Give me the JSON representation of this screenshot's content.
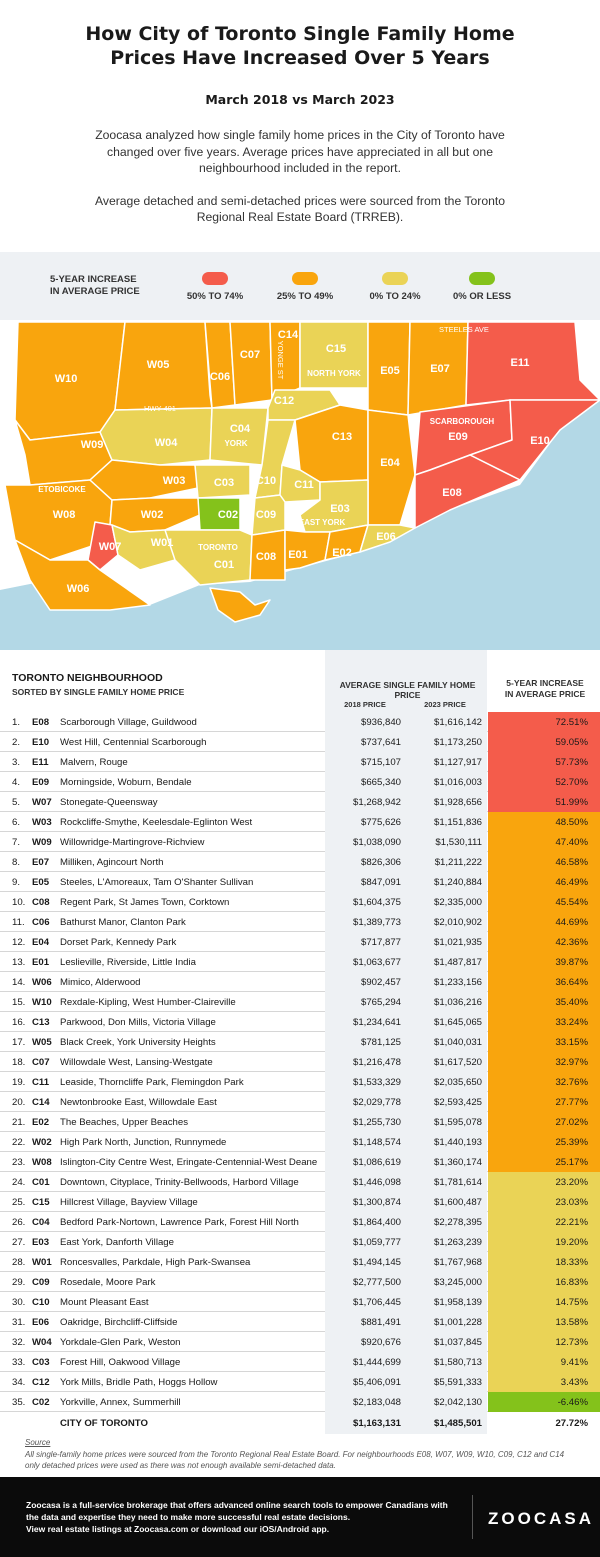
{
  "header": {
    "title": "How City of Toronto Single Family Home Prices Have Increased Over 5 Years",
    "subtitle": "March 2018 vs March 2023",
    "intro1": "Zoocasa analyzed how single family home prices in the City of Toronto have changed over five years. Average prices have appreciated in all but one neighbourhood included in the report.",
    "intro2": "Average detached and semi-detached prices were sourced from the Toronto Regional Real Estate Board (TRREB)."
  },
  "legend": {
    "title_line1": "5-YEAR INCREASE",
    "title_line2": "IN AVERAGE PRICE",
    "items": [
      {
        "label": "50% TO 74%",
        "color": "#f45c4b"
      },
      {
        "label": "25% TO 49%",
        "color": "#f9a50d"
      },
      {
        "label": "0% TO 24%",
        "color": "#ead356"
      },
      {
        "label": "0% OR LESS",
        "color": "#84c21b"
      }
    ]
  },
  "map": {
    "labels": {
      "steeles": "STEELES AVE",
      "yonge": "YONGE ST",
      "hwy": "HWY 401",
      "north_york": "NORTH YORK",
      "york": "YORK",
      "etobicoke": "ETOBICOKE",
      "scarborough": "SCARBOROUGH",
      "toronto": "TORONTO",
      "east_york": "EAST YORK"
    },
    "codes": [
      "W10",
      "W05",
      "C06",
      "C07",
      "C14",
      "C15",
      "E05",
      "E07",
      "E11",
      "W09",
      "W04",
      "C04",
      "C12",
      "C13",
      "E09",
      "E10",
      "E04",
      "W08",
      "W03",
      "C03",
      "C10",
      "C11",
      "E03",
      "E08",
      "W02",
      "C02",
      "C09",
      "W07",
      "W01",
      "C01",
      "C08",
      "E01",
      "E02",
      "E06",
      "W06"
    ]
  },
  "table": {
    "header_left": "TORONTO NEIGHBOURHOOD",
    "header_left_sub": "SORTED BY SINGLE FAMILY HOME PRICE",
    "header_mid": "AVERAGE SINGLE FAMILY HOME PRICE",
    "header_2018": "2018 PRICE",
    "header_2023": "2023 PRICE",
    "header_right_line1": "5-YEAR INCREASE",
    "header_right_line2": "IN AVERAGE PRICE",
    "rows": [
      {
        "rank": "1.",
        "code": "E08",
        "name": "Scarborough Village, Guildwood",
        "p2018": "$936,840",
        "p2023": "$1,616,142",
        "inc": "72.51%"
      },
      {
        "rank": "2.",
        "code": "E10",
        "name": "West Hill, Centennial Scarborough",
        "p2018": "$737,641",
        "p2023": "$1,173,250",
        "inc": "59.05%"
      },
      {
        "rank": "3.",
        "code": "E11",
        "name": "Malvern, Rouge",
        "p2018": "$715,107",
        "p2023": "$1,127,917",
        "inc": "57.73%"
      },
      {
        "rank": "4.",
        "code": "E09",
        "name": "Morningside, Woburn, Bendale",
        "p2018": "$665,340",
        "p2023": "$1,016,003",
        "inc": "52.70%"
      },
      {
        "rank": "5.",
        "code": "W07",
        "name": "Stonegate-Queensway",
        "p2018": "$1,268,942",
        "p2023": "$1,928,656",
        "inc": "51.99%"
      },
      {
        "rank": "6.",
        "code": "W03",
        "name": "Rockcliffe-Smythe, Keelesdale-Eglinton West",
        "p2018": "$775,626",
        "p2023": "$1,151,836",
        "inc": "48.50%"
      },
      {
        "rank": "7.",
        "code": "W09",
        "name": "Willowridge-Martingrove-Richview",
        "p2018": "$1,038,090",
        "p2023": "$1,530,111",
        "inc": "47.40%"
      },
      {
        "rank": "8.",
        "code": "E07",
        "name": "Milliken, Agincourt North",
        "p2018": "$826,306",
        "p2023": "$1,211,222",
        "inc": "46.58%"
      },
      {
        "rank": "9.",
        "code": "E05",
        "name": "Steeles, L'Amoreaux, Tam O'Shanter Sullivan",
        "p2018": "$847,091",
        "p2023": "$1,240,884",
        "inc": "46.49%"
      },
      {
        "rank": "10.",
        "code": "C08",
        "name": "Regent Park, St James Town, Corktown",
        "p2018": "$1,604,375",
        "p2023": "$2,335,000",
        "inc": "45.54%"
      },
      {
        "rank": "11.",
        "code": "C06",
        "name": "Bathurst Manor, Clanton Park",
        "p2018": "$1,389,773",
        "p2023": "$2,010,902",
        "inc": "44.69%"
      },
      {
        "rank": "12.",
        "code": "E04",
        "name": "Dorset Park, Kennedy Park",
        "p2018": "$717,877",
        "p2023": "$1,021,935",
        "inc": "42.36%"
      },
      {
        "rank": "13.",
        "code": "E01",
        "name": "Leslieville, Riverside, Little India",
        "p2018": "$1,063,677",
        "p2023": "$1,487,817",
        "inc": "39.87%"
      },
      {
        "rank": "14.",
        "code": "W06",
        "name": "Mimico, Alderwood",
        "p2018": "$902,457",
        "p2023": "$1,233,156",
        "inc": "36.64%"
      },
      {
        "rank": "15.",
        "code": "W10",
        "name": "Rexdale-Kipling, West Humber-Claireville",
        "p2018": "$765,294",
        "p2023": "$1,036,216",
        "inc": "35.40%"
      },
      {
        "rank": "16.",
        "code": "C13",
        "name": "Parkwood, Don Mills, Victoria Village",
        "p2018": "$1,234,641",
        "p2023": "$1,645,065",
        "inc": "33.24%"
      },
      {
        "rank": "17.",
        "code": "W05",
        "name": "Black Creek, York University Heights",
        "p2018": "$781,125",
        "p2023": "$1,040,031",
        "inc": "33.15%"
      },
      {
        "rank": "18.",
        "code": "C07",
        "name": "Willowdale West, Lansing-Westgate",
        "p2018": "$1,216,478",
        "p2023": "$1,617,520",
        "inc": "32.97%"
      },
      {
        "rank": "19.",
        "code": "C11",
        "name": "Leaside, Thorncliffe Park, Flemingdon Park",
        "p2018": "$1,533,329",
        "p2023": "$2,035,650",
        "inc": "32.76%"
      },
      {
        "rank": "20.",
        "code": "C14",
        "name": "Newtonbrooke East, Willowdale East",
        "p2018": "$2,029,778",
        "p2023": "$2,593,425",
        "inc": "27.77%"
      },
      {
        "rank": "21.",
        "code": "E02",
        "name": "The Beaches, Upper Beaches",
        "p2018": "$1,255,730",
        "p2023": "$1,595,078",
        "inc": "27.02%"
      },
      {
        "rank": "22.",
        "code": "W02",
        "name": "High Park North, Junction, Runnymede",
        "p2018": "$1,148,574",
        "p2023": "$1,440,193",
        "inc": "25.39%"
      },
      {
        "rank": "23.",
        "code": "W08",
        "name": "Islington-City Centre West, Eringate-Centennial-West Deane",
        "p2018": "$1,086,619",
        "p2023": "$1,360,174",
        "inc": "25.17%"
      },
      {
        "rank": "24.",
        "code": "C01",
        "name": "Downtown, Cityplace, Trinity-Bellwoods, Harbord Village",
        "p2018": "$1,446,098",
        "p2023": "$1,781,614",
        "inc": "23.20%"
      },
      {
        "rank": "25.",
        "code": "C15",
        "name": "Hillcrest Village, Bayview Village",
        "p2018": "$1,300,874",
        "p2023": "$1,600,487",
        "inc": "23.03%"
      },
      {
        "rank": "26.",
        "code": "C04",
        "name": "Bedford Park-Nortown, Lawrence Park, Forest Hill North",
        "p2018": "$1,864,400",
        "p2023": "$2,278,395",
        "inc": "22.21%"
      },
      {
        "rank": "27.",
        "code": "E03",
        "name": "East York, Danforth Village",
        "p2018": "$1,059,777",
        "p2023": "$1,263,239",
        "inc": "19.20%"
      },
      {
        "rank": "28.",
        "code": "W01",
        "name": "Roncesvalles, Parkdale, High Park-Swansea",
        "p2018": "$1,494,145",
        "p2023": "$1,767,968",
        "inc": "18.33%"
      },
      {
        "rank": "29.",
        "code": "C09",
        "name": "Rosedale, Moore Park",
        "p2018": "$2,777,500",
        "p2023": "$3,245,000",
        "inc": "16.83%"
      },
      {
        "rank": "30.",
        "code": "C10",
        "name": "Mount Pleasant East",
        "p2018": "$1,706,445",
        "p2023": "$1,958,139",
        "inc": "14.75%"
      },
      {
        "rank": "31.",
        "code": "E06",
        "name": "Oakridge, Birchcliff-Cliffside",
        "p2018": "$881,491",
        "p2023": "$1,001,228",
        "inc": "13.58%"
      },
      {
        "rank": "32.",
        "code": "W04",
        "name": "Yorkdale-Glen Park, Weston",
        "p2018": "$920,676",
        "p2023": "$1,037,845",
        "inc": "12.73%"
      },
      {
        "rank": "33.",
        "code": "C03",
        "name": "Forest Hill, Oakwood Village",
        "p2018": "$1,444,699",
        "p2023": "$1,580,713",
        "inc": "9.41%"
      },
      {
        "rank": "34.",
        "code": "C12",
        "name": "York Mills, Bridle Path, Hoggs Hollow",
        "p2018": "$5,406,091",
        "p2023": "$5,591,333",
        "inc": "3.43%"
      },
      {
        "rank": "35.",
        "code": "C02",
        "name": "Yorkville, Annex, Summerhill",
        "p2018": "$2,183,048",
        "p2023": "$2,042,130",
        "inc": "-6.46%"
      }
    ],
    "total": {
      "name": "CITY OF TORONTO",
      "p2018": "$1,163,131",
      "p2023": "$1,485,501",
      "inc": "27.72%"
    }
  },
  "source": {
    "title": "Source",
    "text": "All single-family home prices were sourced from the Toronto Regional Real Estate Board. For neighbourhoods E08, W07, W09, W10, C09, C12 and C14 only detached prices were used as there was not enough available semi-detached data."
  },
  "footer": {
    "text1": "Zoocasa is a full-service brokerage that offers advanced online search tools to empower Canadians with the data and expertise they need to make more successful real estate decisions.",
    "text2": "View real estate listings at Zoocasa.com or download our iOS/Android app.",
    "logo": "ZOOCASA"
  }
}
